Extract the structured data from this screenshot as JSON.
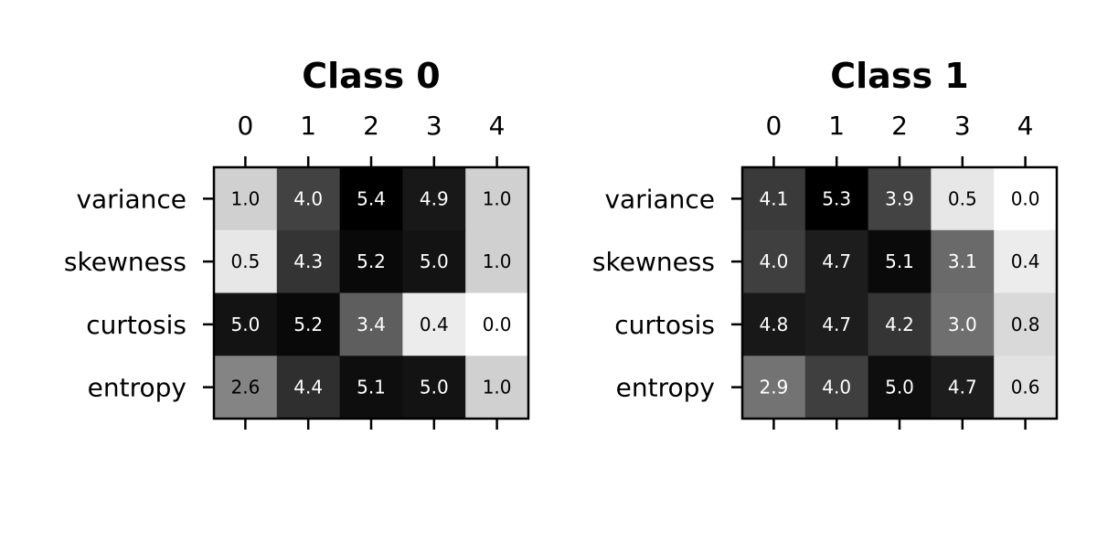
{
  "chart_data": [
    {
      "type": "heatmap",
      "title": "Class 0",
      "x_categories": [
        "0",
        "1",
        "2",
        "3",
        "4"
      ],
      "y_categories": [
        "variance",
        "skewness",
        "curtosis",
        "entropy"
      ],
      "values": [
        [
          1.0,
          4.0,
          5.4,
          4.9,
          1.0
        ],
        [
          0.5,
          4.3,
          5.2,
          5.0,
          1.0
        ],
        [
          5.0,
          5.2,
          3.4,
          0.4,
          0.0
        ],
        [
          2.6,
          4.4,
          5.1,
          5.0,
          1.0
        ]
      ],
      "colormap": "gray_r",
      "x_ticks_position": "top",
      "grid": false
    },
    {
      "type": "heatmap",
      "title": "Class 1",
      "x_categories": [
        "0",
        "1",
        "2",
        "3",
        "4"
      ],
      "y_categories": [
        "variance",
        "skewness",
        "curtosis",
        "entropy"
      ],
      "values": [
        [
          4.1,
          5.3,
          3.9,
          0.5,
          0.0
        ],
        [
          4.0,
          4.7,
          5.1,
          3.1,
          0.4
        ],
        [
          4.8,
          4.7,
          4.2,
          3.0,
          0.8
        ],
        [
          2.9,
          4.0,
          5.0,
          4.7,
          0.6
        ]
      ],
      "colormap": "gray_r",
      "x_ticks_position": "top",
      "grid": false
    }
  ]
}
